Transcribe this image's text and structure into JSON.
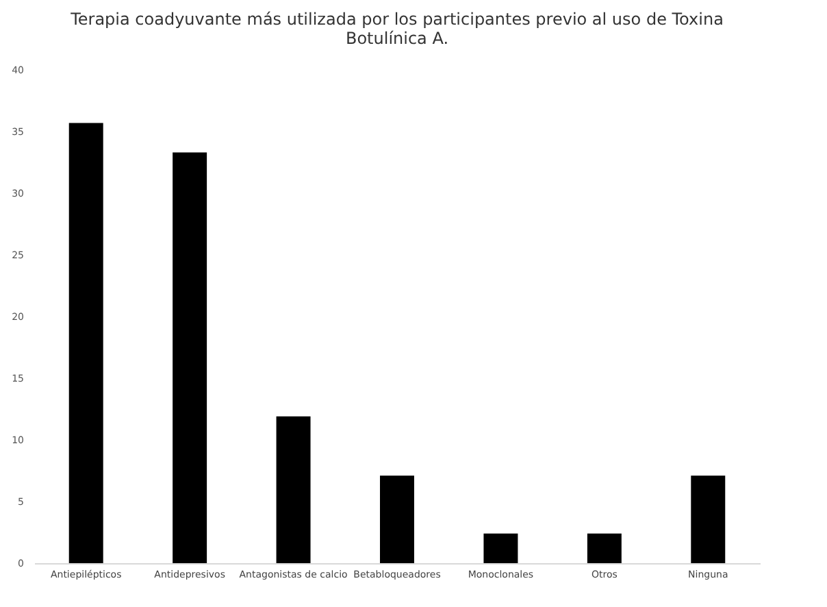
{
  "chart_data": {
    "type": "bar",
    "title": "Terapia coadyuvante más utilizada por los participantes previo al uso de Toxina Botulínica A.",
    "categories": [
      "Antiepilépticos",
      "Antidepresivos",
      "Antagonistas de calcio",
      "Betabloqueadores",
      "Monoclonales",
      "Otros",
      "Ninguna"
    ],
    "values": [
      35.7,
      33.3,
      11.9,
      7.1,
      2.4,
      2.4,
      7.1
    ],
    "color": "#000000",
    "ylim": [
      0,
      40
    ],
    "yticks": [
      0,
      5,
      10,
      15,
      20,
      25,
      30,
      35,
      40
    ],
    "grid": false
  }
}
